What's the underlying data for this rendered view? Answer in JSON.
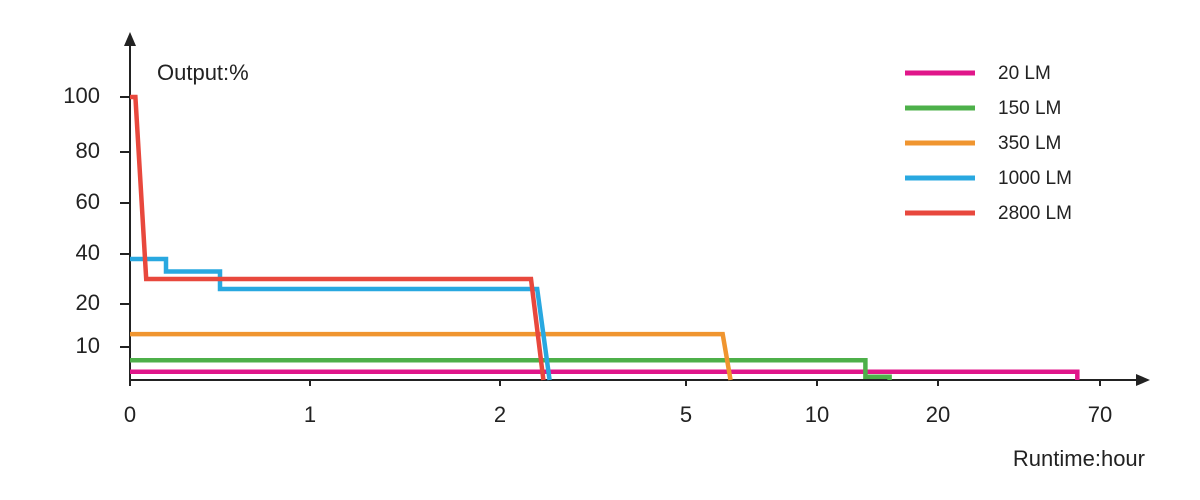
{
  "chart_data": {
    "type": "line",
    "ylabel": "Output:%",
    "xlabel": "Runtime:hour",
    "xlim": [
      0,
      70
    ],
    "xticks": [
      0,
      1,
      2,
      5,
      10,
      20,
      70
    ],
    "ylim": [
      0,
      100
    ],
    "yticks": [
      10,
      20,
      40,
      60,
      80,
      100
    ],
    "legend": "top-right",
    "series": [
      {
        "name": "20 LM",
        "color": "#e0168a",
        "x": [
          0,
          63,
          63
        ],
        "values": [
          2.5,
          2.5,
          0
        ]
      },
      {
        "name": "150 LM",
        "color": "#4db04a",
        "x": [
          0,
          14,
          14,
          16,
          16
        ],
        "values": [
          6,
          6,
          1,
          1,
          0
        ]
      },
      {
        "name": "350 LM",
        "color": "#f0952f",
        "x": [
          0,
          6.4,
          6.7
        ],
        "values": [
          13,
          13,
          0
        ]
      },
      {
        "name": "1000 LM",
        "color": "#29a8e0",
        "x": [
          0,
          0.2,
          0.2,
          0.5,
          0.5,
          2.6,
          2.8
        ],
        "values": [
          38,
          38,
          33,
          33,
          26,
          26,
          0
        ]
      },
      {
        "name": "2800 LM",
        "color": "#e8483d",
        "x": [
          0,
          0.03,
          0.09,
          2.5,
          2.7
        ],
        "values": [
          100,
          100,
          30,
          30,
          0
        ]
      }
    ]
  }
}
